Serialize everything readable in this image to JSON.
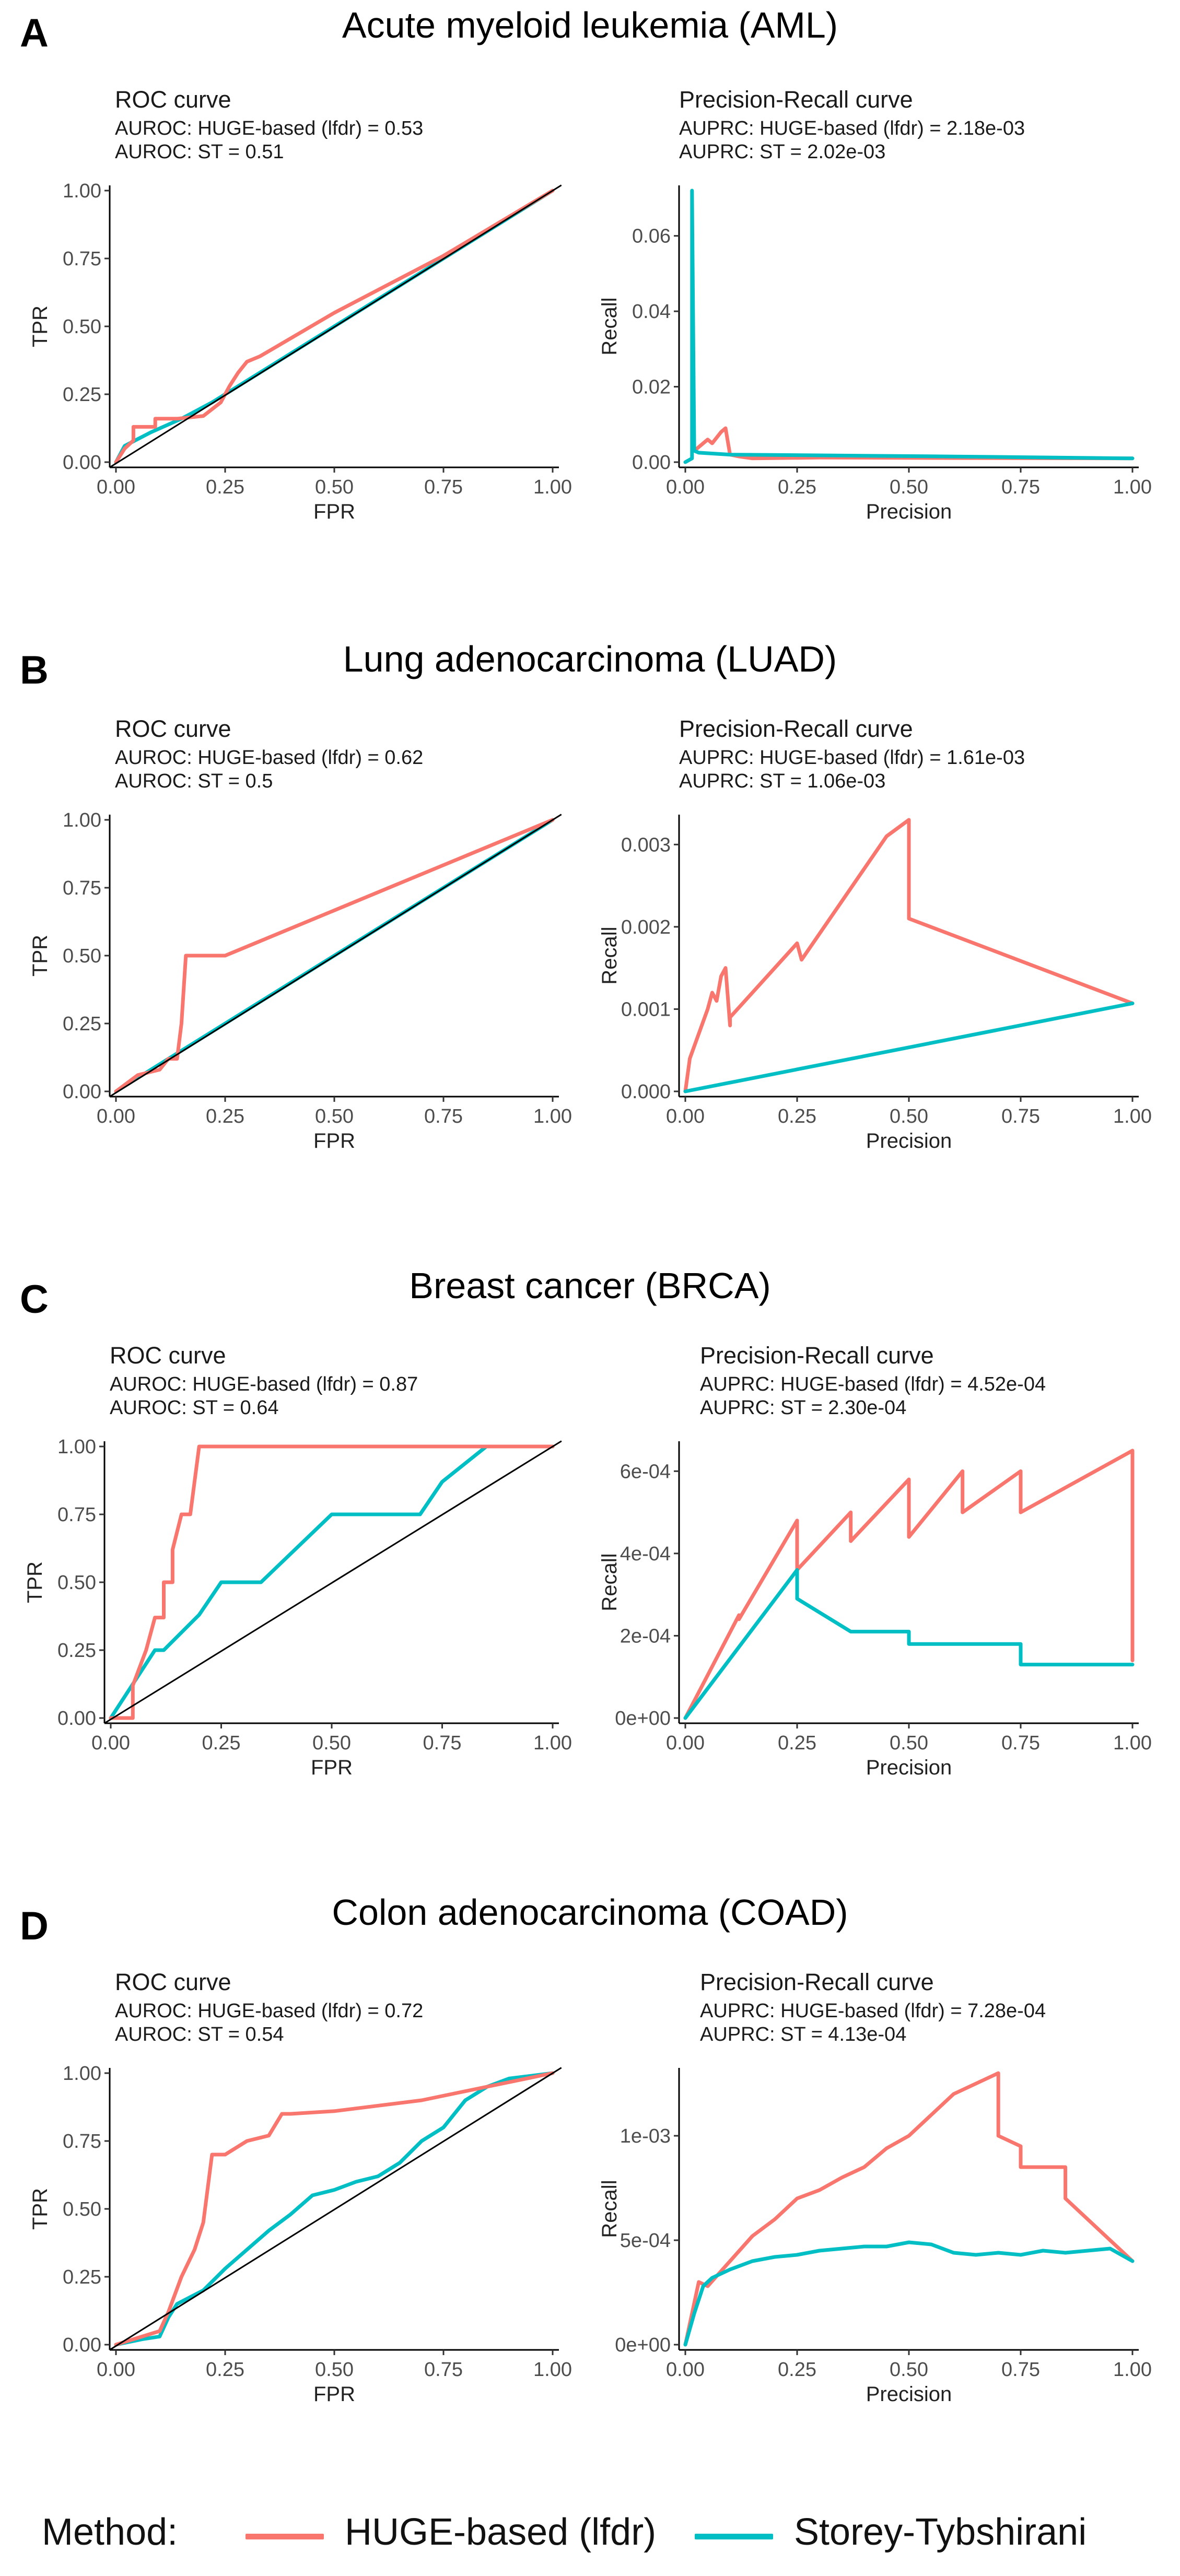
{
  "legend": {
    "title": "Method:",
    "items": [
      {
        "label": "HUGE-based (lfdr)",
        "color": "#F8766D"
      },
      {
        "label": "Storey-Tybshirani",
        "color": "#00BFC4"
      }
    ]
  },
  "panels": [
    {
      "letter": "A",
      "title": "Acute myeloid leukemia (AML)",
      "roc_heading": "ROC curve",
      "roc_metric_1": "AUROC:  HUGE-based (lfdr)  = 0.53",
      "roc_metric_2": "AUROC: ST = 0.51",
      "pr_heading": "Precision-Recall curve",
      "pr_metric_1": "AUPRC:  HUGE-based (lfdr)  = 2.18e-03",
      "pr_metric_2": "AUPRC: ST = 2.02e-03"
    },
    {
      "letter": "B",
      "title": "Lung adenocarcinoma (LUAD)",
      "roc_heading": "ROC curve",
      "roc_metric_1": "AUROC:  HUGE-based (lfdr)  = 0.62",
      "roc_metric_2": "AUROC: ST = 0.5",
      "pr_heading": "Precision-Recall curve",
      "pr_metric_1": "AUPRC:  HUGE-based (lfdr)  = 1.61e-03",
      "pr_metric_2": "AUPRC: ST = 1.06e-03"
    },
    {
      "letter": "C",
      "title": "Breast cancer (BRCA)",
      "roc_heading": "ROC curve",
      "roc_metric_1": "AUROC:  HUGE-based (lfdr)  = 0.87",
      "roc_metric_2": "AUROC: ST = 0.64",
      "pr_heading": "Precision-Recall curve",
      "pr_metric_1": "AUPRC:  HUGE-based (lfdr)  = 4.52e-04",
      "pr_metric_2": "AUPRC: ST = 2.30e-04"
    },
    {
      "letter": "D",
      "title": "Colon adenocarcinoma (COAD)",
      "roc_heading": "ROC curve",
      "roc_metric_1": "AUROC:  HUGE-based (lfdr)  = 0.72",
      "roc_metric_2": "AUROC: ST = 0.54",
      "pr_heading": "Precision-Recall curve",
      "pr_metric_1": "AUPRC:  HUGE-based (lfdr)  = 7.28e-04",
      "pr_metric_2": "AUPRC: ST = 4.13e-04"
    }
  ],
  "chart_data": [
    {
      "id": "A-roc",
      "type": "line",
      "title": "ROC curve",
      "xlabel": "FPR",
      "ylabel": "TPR",
      "xlim": [
        0,
        1
      ],
      "ylim": [
        0,
        1
      ],
      "diagonal": true,
      "xticks": [
        0,
        0.25,
        0.5,
        0.75,
        1.0
      ],
      "xtick_labels": [
        "0.00",
        "0.25",
        "0.50",
        "0.75",
        "1.00"
      ],
      "yticks": [
        0,
        0.25,
        0.5,
        0.75,
        1.0
      ],
      "ytick_labels": [
        "0.00",
        "0.25",
        "0.50",
        "0.75",
        "1.00"
      ],
      "series": [
        {
          "name": "Storey-Tybshirani",
          "color": "#00BFC4",
          "x": [
            0,
            0.02,
            0.08,
            0.15,
            0.22,
            0.3,
            0.5,
            0.75,
            1.0
          ],
          "y": [
            0,
            0.06,
            0.11,
            0.16,
            0.22,
            0.3,
            0.5,
            0.75,
            1.0
          ]
        },
        {
          "name": "HUGE-based (lfdr)",
          "color": "#F8766D",
          "x": [
            0,
            0.02,
            0.04,
            0.04,
            0.09,
            0.09,
            0.14,
            0.2,
            0.24,
            0.26,
            0.28,
            0.3,
            0.33,
            0.5,
            0.75,
            1.0
          ],
          "y": [
            0,
            0.05,
            0.08,
            0.13,
            0.13,
            0.16,
            0.16,
            0.17,
            0.22,
            0.28,
            0.33,
            0.37,
            0.39,
            0.55,
            0.76,
            1.0
          ]
        }
      ]
    },
    {
      "id": "A-pr",
      "type": "line",
      "title": "Precision-Recall curve",
      "xlabel": "Precision",
      "ylabel": "Recall",
      "xlim": [
        0,
        1
      ],
      "ylim": [
        0,
        0.072
      ],
      "diagonal": false,
      "xticks": [
        0,
        0.25,
        0.5,
        0.75,
        1.0
      ],
      "xtick_labels": [
        "0.00",
        "0.25",
        "0.50",
        "0.75",
        "1.00"
      ],
      "yticks": [
        0,
        0.02,
        0.04,
        0.06
      ],
      "ytick_labels": [
        "0.00",
        "0.02",
        "0.04",
        "0.06"
      ],
      "series": [
        {
          "name": "HUGE-based (lfdr)",
          "color": "#F8766D",
          "x": [
            0.02,
            0.05,
            0.06,
            0.08,
            0.09,
            0.1,
            0.12,
            0.15,
            0.3,
            0.6,
            1.0
          ],
          "y": [
            0.003,
            0.006,
            0.005,
            0.008,
            0.009,
            0.002,
            0.0015,
            0.001,
            0.0012,
            0.0011,
            0.001
          ]
        },
        {
          "name": "Storey-Tybshirani",
          "color": "#00BFC4",
          "x": [
            0.0,
            0.015,
            0.015,
            0.02,
            0.03,
            0.1,
            0.3,
            0.6,
            1.0
          ],
          "y": [
            0.0,
            0.001,
            0.072,
            0.003,
            0.0025,
            0.002,
            0.0018,
            0.0015,
            0.001
          ]
        }
      ]
    },
    {
      "id": "B-roc",
      "type": "line",
      "title": "ROC curve",
      "xlabel": "FPR",
      "ylabel": "TPR",
      "xlim": [
        0,
        1
      ],
      "ylim": [
        0,
        1
      ],
      "diagonal": true,
      "xticks": [
        0,
        0.25,
        0.5,
        0.75,
        1.0
      ],
      "xtick_labels": [
        "0.00",
        "0.25",
        "0.50",
        "0.75",
        "1.00"
      ],
      "yticks": [
        0,
        0.25,
        0.5,
        0.75,
        1.0
      ],
      "ytick_labels": [
        "0.00",
        "0.25",
        "0.50",
        "0.75",
        "1.00"
      ],
      "series": [
        {
          "name": "Storey-Tybshirani",
          "color": "#00BFC4",
          "x": [
            0,
            1.0
          ],
          "y": [
            0,
            1.0
          ]
        },
        {
          "name": "HUGE-based (lfdr)",
          "color": "#F8766D",
          "x": [
            0,
            0.05,
            0.1,
            0.12,
            0.14,
            0.15,
            0.15,
            0.16,
            0.19,
            0.25,
            1.0
          ],
          "y": [
            0,
            0.06,
            0.08,
            0.12,
            0.12,
            0.25,
            0.25,
            0.5,
            0.5,
            0.5,
            1.0
          ]
        }
      ]
    },
    {
      "id": "B-pr",
      "type": "line",
      "title": "Precision-Recall curve",
      "xlabel": "Precision",
      "ylabel": "Recall",
      "xlim": [
        0,
        1
      ],
      "ylim": [
        0,
        0.0033
      ],
      "diagonal": false,
      "xticks": [
        0,
        0.25,
        0.5,
        0.75,
        1.0
      ],
      "xtick_labels": [
        "0.00",
        "0.25",
        "0.50",
        "0.75",
        "1.00"
      ],
      "yticks": [
        0,
        0.001,
        0.002,
        0.003
      ],
      "ytick_labels": [
        "0.000",
        "0.001",
        "0.002",
        "0.003"
      ],
      "series": [
        {
          "name": "HUGE-based (lfdr)",
          "color": "#F8766D",
          "x": [
            0,
            0.01,
            0.03,
            0.05,
            0.06,
            0.07,
            0.08,
            0.09,
            0.1,
            0.1,
            0.2,
            0.25,
            0.26,
            0.45,
            0.5,
            0.5,
            1.0
          ],
          "y": [
            0,
            0.0004,
            0.0007,
            0.001,
            0.0012,
            0.0011,
            0.0014,
            0.0015,
            0.0008,
            0.0009,
            0.0015,
            0.0018,
            0.0016,
            0.0031,
            0.0033,
            0.0021,
            0.00107
          ]
        },
        {
          "name": "Storey-Tybshirani",
          "color": "#00BFC4",
          "x": [
            0,
            1.0
          ],
          "y": [
            0,
            0.00107
          ]
        }
      ]
    },
    {
      "id": "C-roc",
      "type": "line",
      "title": "ROC curve",
      "xlabel": "FPR",
      "ylabel": "TPR",
      "xlim": [
        0,
        1
      ],
      "ylim": [
        0,
        1
      ],
      "diagonal": true,
      "xticks": [
        0,
        0.25,
        0.5,
        0.75,
        1.0
      ],
      "xtick_labels": [
        "0.00",
        "0.25",
        "0.50",
        "0.75",
        "1.00"
      ],
      "yticks": [
        0,
        0.25,
        0.5,
        0.75,
        1.0
      ],
      "ytick_labels": [
        "0.00",
        "0.25",
        "0.50",
        "0.75",
        "1.00"
      ],
      "series": [
        {
          "name": "Storey-Tybshirani",
          "color": "#00BFC4",
          "x": [
            0,
            0.1,
            0.12,
            0.2,
            0.25,
            0.3,
            0.34,
            0.5,
            0.7,
            0.75,
            0.85,
            1.0
          ],
          "y": [
            0,
            0.25,
            0.25,
            0.38,
            0.5,
            0.5,
            0.5,
            0.75,
            0.75,
            0.87,
            1.0,
            1.0
          ]
        },
        {
          "name": "HUGE-based (lfdr)",
          "color": "#F8766D",
          "x": [
            0,
            0.05,
            0.05,
            0.08,
            0.1,
            0.12,
            0.12,
            0.14,
            0.14,
            0.16,
            0.18,
            0.2,
            1.0
          ],
          "y": [
            0,
            0.0,
            0.12,
            0.25,
            0.37,
            0.37,
            0.5,
            0.5,
            0.62,
            0.75,
            0.75,
            1.0,
            1.0
          ]
        }
      ]
    },
    {
      "id": "C-pr",
      "type": "line",
      "title": "Precision-Recall curve",
      "xlabel": "Precision",
      "ylabel": "Recall",
      "xlim": [
        0,
        1
      ],
      "ylim": [
        0,
        0.00066
      ],
      "diagonal": false,
      "xticks": [
        0,
        0.25,
        0.5,
        0.75,
        1.0
      ],
      "xtick_labels": [
        "0.00",
        "0.25",
        "0.50",
        "0.75",
        "1.00"
      ],
      "yticks": [
        0,
        0.0002,
        0.0004,
        0.0006
      ],
      "ytick_labels": [
        "0e+00",
        "2e-04",
        "4e-04",
        "6e-04"
      ],
      "series": [
        {
          "name": "HUGE-based (lfdr)",
          "color": "#F8766D",
          "x": [
            0,
            0.12,
            0.12,
            0.25,
            0.25,
            0.37,
            0.37,
            0.5,
            0.5,
            0.62,
            0.62,
            0.75,
            0.75,
            1.0,
            1.0
          ],
          "y": [
            0,
            0.00025,
            0.00024,
            0.00048,
            0.00036,
            0.0005,
            0.00043,
            0.00058,
            0.00044,
            0.0006,
            0.0005,
            0.0006,
            0.0005,
            0.00065,
            0.00014
          ]
        },
        {
          "name": "Storey-Tybshirani",
          "color": "#00BFC4",
          "x": [
            0,
            0.25,
            0.25,
            0.37,
            0.5,
            0.5,
            0.75,
            0.75,
            1.0
          ],
          "y": [
            0,
            0.00036,
            0.00029,
            0.00021,
            0.00021,
            0.00018,
            0.00018,
            0.00013,
            0.00013
          ]
        }
      ]
    },
    {
      "id": "D-roc",
      "type": "line",
      "title": "ROC curve",
      "xlabel": "FPR",
      "ylabel": "TPR",
      "xlim": [
        0,
        1
      ],
      "ylim": [
        0,
        1
      ],
      "diagonal": true,
      "xticks": [
        0,
        0.25,
        0.5,
        0.75,
        1.0
      ],
      "xtick_labels": [
        "0.00",
        "0.25",
        "0.50",
        "0.75",
        "1.00"
      ],
      "yticks": [
        0,
        0.25,
        0.5,
        0.75,
        1.0
      ],
      "ytick_labels": [
        "0.00",
        "0.25",
        "0.50",
        "0.75",
        "1.00"
      ],
      "series": [
        {
          "name": "Storey-Tybshirani",
          "color": "#00BFC4",
          "x": [
            0,
            0.06,
            0.1,
            0.12,
            0.14,
            0.2,
            0.25,
            0.3,
            0.35,
            0.4,
            0.45,
            0.5,
            0.55,
            0.6,
            0.65,
            0.7,
            0.75,
            0.8,
            0.85,
            0.9,
            1.0
          ],
          "y": [
            0,
            0.02,
            0.03,
            0.1,
            0.15,
            0.2,
            0.28,
            0.35,
            0.42,
            0.48,
            0.55,
            0.57,
            0.6,
            0.62,
            0.67,
            0.75,
            0.8,
            0.9,
            0.95,
            0.98,
            1.0
          ]
        },
        {
          "name": "HUGE-based (lfdr)",
          "color": "#F8766D",
          "x": [
            0,
            0.06,
            0.1,
            0.12,
            0.15,
            0.18,
            0.2,
            0.22,
            0.25,
            0.3,
            0.35,
            0.38,
            0.4,
            0.5,
            0.7,
            0.85,
            1.0
          ],
          "y": [
            0,
            0.03,
            0.05,
            0.12,
            0.25,
            0.35,
            0.45,
            0.7,
            0.7,
            0.75,
            0.77,
            0.85,
            0.85,
            0.86,
            0.9,
            0.95,
            1.0
          ]
        }
      ]
    },
    {
      "id": "D-pr",
      "type": "line",
      "title": "Precision-Recall curve",
      "xlabel": "Precision",
      "ylabel": "Recall",
      "xlim": [
        0,
        1
      ],
      "ylim": [
        0,
        0.0013
      ],
      "diagonal": false,
      "xticks": [
        0,
        0.25,
        0.5,
        0.75,
        1.0
      ],
      "xtick_labels": [
        "0.00",
        "0.25",
        "0.50",
        "0.75",
        "1.00"
      ],
      "yticks": [
        0,
        0.0005,
        0.001
      ],
      "ytick_labels": [
        "0e+00",
        "5e-04",
        "1e-03"
      ],
      "series": [
        {
          "name": "HUGE-based (lfdr)",
          "color": "#F8766D",
          "x": [
            0,
            0.03,
            0.05,
            0.1,
            0.15,
            0.2,
            0.25,
            0.3,
            0.35,
            0.4,
            0.45,
            0.5,
            0.55,
            0.6,
            0.65,
            0.7,
            0.7,
            0.75,
            0.75,
            0.8,
            0.85,
            0.85,
            1.0
          ],
          "y": [
            0,
            0.0003,
            0.00028,
            0.0004,
            0.00052,
            0.0006,
            0.0007,
            0.00074,
            0.0008,
            0.00085,
            0.00094,
            0.001,
            0.0011,
            0.0012,
            0.00125,
            0.0013,
            0.001,
            0.00095,
            0.00085,
            0.00085,
            0.00085,
            0.0007,
            0.0004
          ]
        },
        {
          "name": "Storey-Tybshirani",
          "color": "#00BFC4",
          "x": [
            0,
            0.02,
            0.04,
            0.06,
            0.1,
            0.15,
            0.2,
            0.25,
            0.3,
            0.35,
            0.4,
            0.45,
            0.5,
            0.55,
            0.6,
            0.65,
            0.7,
            0.75,
            0.8,
            0.85,
            0.9,
            0.95,
            1.0
          ],
          "y": [
            0,
            0.00015,
            0.00028,
            0.00032,
            0.00036,
            0.0004,
            0.00042,
            0.00043,
            0.00045,
            0.00046,
            0.00047,
            0.00047,
            0.00049,
            0.00048,
            0.00044,
            0.00043,
            0.00044,
            0.00043,
            0.00045,
            0.00044,
            0.00045,
            0.00046,
            0.0004
          ]
        }
      ]
    }
  ]
}
